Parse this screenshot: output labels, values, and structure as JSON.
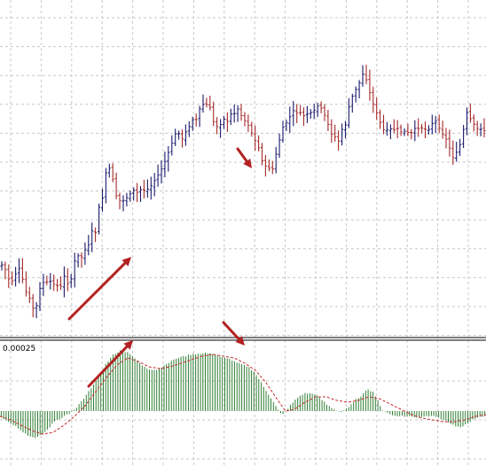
{
  "chart_data": [
    {
      "type": "bar",
      "subtype": "ohlc-price",
      "grid": true,
      "grid_style": "dashed",
      "ylim": [
        0,
        380
      ],
      "bar_count": 140,
      "close_path": [
        [
          0,
          300
        ],
        [
          4,
          298
        ],
        [
          8,
          312
        ],
        [
          12,
          318
        ],
        [
          16,
          314
        ],
        [
          20,
          300
        ],
        [
          24,
          312
        ],
        [
          28,
          326
        ],
        [
          31,
          334
        ],
        [
          34,
          340
        ],
        [
          38,
          350
        ],
        [
          41,
          346
        ],
        [
          44,
          330
        ],
        [
          48,
          318
        ],
        [
          52,
          320
        ],
        [
          56,
          320
        ],
        [
          60,
          318
        ],
        [
          64,
          322
        ],
        [
          68,
          326
        ],
        [
          72,
          312
        ],
        [
          76,
          318
        ],
        [
          80,
          316
        ],
        [
          84,
          296
        ],
        [
          88,
          290
        ],
        [
          92,
          290
        ],
        [
          96,
          282
        ],
        [
          100,
          278
        ],
        [
          104,
          262
        ],
        [
          108,
          262
        ],
        [
          112,
          232
        ],
        [
          116,
          222
        ],
        [
          118,
          198
        ],
        [
          121,
          192
        ],
        [
          124,
          192
        ],
        [
          127,
          200
        ],
        [
          130,
          218
        ],
        [
          134,
          226
        ],
        [
          138,
          228
        ],
        [
          142,
          222
        ],
        [
          146,
          222
        ],
        [
          150,
          216
        ],
        [
          154,
          218
        ],
        [
          158,
          214
        ],
        [
          162,
          214
        ],
        [
          166,
          214
        ],
        [
          170,
          210
        ],
        [
          174,
          204
        ],
        [
          178,
          198
        ],
        [
          182,
          190
        ],
        [
          186,
          182
        ],
        [
          190,
          174
        ],
        [
          194,
          160
        ],
        [
          198,
          152
        ],
        [
          202,
          148
        ],
        [
          206,
          160
        ],
        [
          210,
          148
        ],
        [
          214,
          140
        ],
        [
          218,
          132
        ],
        [
          222,
          136
        ],
        [
          225,
          124
        ],
        [
          228,
          118
        ],
        [
          232,
          118
        ],
        [
          236,
          120
        ],
        [
          240,
          136
        ],
        [
          244,
          142
        ],
        [
          248,
          140
        ],
        [
          252,
          132
        ],
        [
          256,
          140
        ],
        [
          260,
          130
        ],
        [
          264,
          126
        ],
        [
          268,
          124
        ],
        [
          272,
          128
        ],
        [
          276,
          136
        ],
        [
          280,
          140
        ],
        [
          284,
          150
        ],
        [
          288,
          160
        ],
        [
          292,
          168
        ],
        [
          295,
          178
        ],
        [
          299,
          190
        ],
        [
          303,
          188
        ],
        [
          307,
          192
        ],
        [
          311,
          176
        ],
        [
          315,
          158
        ],
        [
          319,
          146
        ],
        [
          323,
          138
        ],
        [
          327,
          132
        ],
        [
          331,
          126
        ],
        [
          335,
          126
        ],
        [
          339,
          130
        ],
        [
          343,
          130
        ],
        [
          347,
          128
        ],
        [
          351,
          130
        ],
        [
          355,
          126
        ],
        [
          359,
          118
        ],
        [
          363,
          126
        ],
        [
          367,
          134
        ],
        [
          371,
          144
        ],
        [
          375,
          152
        ],
        [
          379,
          156
        ],
        [
          383,
          160
        ],
        [
          386,
          146
        ],
        [
          389,
          142
        ],
        [
          393,
          124
        ],
        [
          397,
          110
        ],
        [
          401,
          100
        ],
        [
          405,
          94
        ],
        [
          408,
          88
        ],
        [
          411,
          76
        ],
        [
          414,
          94
        ],
        [
          418,
          110
        ],
        [
          422,
          118
        ],
        [
          426,
          134
        ],
        [
          430,
          142
        ],
        [
          434,
          150
        ],
        [
          438,
          148
        ],
        [
          442,
          146
        ],
        [
          446,
          146
        ],
        [
          450,
          148
        ],
        [
          454,
          148
        ],
        [
          458,
          150
        ],
        [
          462,
          152
        ],
        [
          466,
          150
        ],
        [
          470,
          144
        ],
        [
          474,
          142
        ],
        [
          478,
          146
        ],
        [
          482,
          146
        ],
        [
          486,
          140
        ],
        [
          490,
          136
        ],
        [
          494,
          140
        ],
        [
          498,
          148
        ],
        [
          502,
          156
        ],
        [
          506,
          164
        ],
        [
          510,
          176
        ],
        [
          514,
          176
        ],
        [
          518,
          166
        ],
        [
          522,
          150
        ],
        [
          526,
          128
        ],
        [
          530,
          134
        ],
        [
          534,
          142
        ],
        [
          538,
          146
        ],
        [
          542,
          144
        ],
        [
          548,
          148
        ]
      ]
    },
    {
      "type": "bar",
      "subtype": "oscillator-histogram",
      "grid": true,
      "level_label": "0.00025",
      "zero_line": 464,
      "bar_count": 200,
      "histogram_path": [
        [
          0,
          470
        ],
        [
          8,
          476
        ],
        [
          16,
          480
        ],
        [
          24,
          486
        ],
        [
          32,
          492
        ],
        [
          40,
          494
        ],
        [
          48,
          490
        ],
        [
          56,
          482
        ],
        [
          64,
          474
        ],
        [
          72,
          470
        ],
        [
          80,
          466
        ],
        [
          88,
          458
        ],
        [
          96,
          448
        ],
        [
          104,
          436
        ],
        [
          112,
          424
        ],
        [
          120,
          410
        ],
        [
          128,
          400
        ],
        [
          136,
          396
        ],
        [
          144,
          398
        ],
        [
          152,
          404
        ],
        [
          160,
          412
        ],
        [
          168,
          418
        ],
        [
          176,
          418
        ],
        [
          184,
          414
        ],
        [
          192,
          408
        ],
        [
          200,
          404
        ],
        [
          208,
          402
        ],
        [
          216,
          400
        ],
        [
          224,
          400
        ],
        [
          232,
          398
        ],
        [
          240,
          400
        ],
        [
          248,
          402
        ],
        [
          256,
          404
        ],
        [
          264,
          408
        ],
        [
          272,
          410
        ],
        [
          280,
          414
        ],
        [
          288,
          422
        ],
        [
          296,
          434
        ],
        [
          304,
          448
        ],
        [
          312,
          460
        ],
        [
          318,
          468
        ],
        [
          324,
          462
        ],
        [
          330,
          454
        ],
        [
          336,
          448
        ],
        [
          344,
          444
        ],
        [
          352,
          444
        ],
        [
          360,
          448
        ],
        [
          368,
          456
        ],
        [
          376,
          462
        ],
        [
          384,
          466
        ],
        [
          392,
          460
        ],
        [
          400,
          452
        ],
        [
          408,
          446
        ],
        [
          414,
          440
        ],
        [
          420,
          442
        ],
        [
          426,
          452
        ],
        [
          432,
          464
        ],
        [
          440,
          468
        ],
        [
          448,
          470
        ],
        [
          456,
          470
        ],
        [
          464,
          470
        ],
        [
          472,
          472
        ],
        [
          480,
          470
        ],
        [
          488,
          470
        ],
        [
          496,
          472
        ],
        [
          504,
          476
        ],
        [
          512,
          480
        ],
        [
          518,
          482
        ],
        [
          524,
          480
        ],
        [
          530,
          476
        ],
        [
          536,
          472
        ],
        [
          542,
          470
        ],
        [
          548,
          470
        ]
      ],
      "signal_path": [
        [
          0,
          470
        ],
        [
          12,
          474
        ],
        [
          24,
          480
        ],
        [
          36,
          486
        ],
        [
          48,
          490
        ],
        [
          60,
          488
        ],
        [
          72,
          480
        ],
        [
          84,
          470
        ],
        [
          96,
          458
        ],
        [
          108,
          442
        ],
        [
          120,
          426
        ],
        [
          132,
          412
        ],
        [
          144,
          404
        ],
        [
          156,
          408
        ],
        [
          168,
          414
        ],
        [
          180,
          416
        ],
        [
          192,
          414
        ],
        [
          204,
          410
        ],
        [
          216,
          406
        ],
        [
          228,
          402
        ],
        [
          240,
          400
        ],
        [
          252,
          402
        ],
        [
          264,
          404
        ],
        [
          276,
          410
        ],
        [
          288,
          418
        ],
        [
          300,
          432
        ],
        [
          312,
          450
        ],
        [
          322,
          464
        ],
        [
          332,
          462
        ],
        [
          344,
          454
        ],
        [
          356,
          448
        ],
        [
          368,
          448
        ],
        [
          380,
          452
        ],
        [
          392,
          454
        ],
        [
          404,
          452
        ],
        [
          416,
          448
        ],
        [
          428,
          450
        ],
        [
          440,
          456
        ],
        [
          452,
          462
        ],
        [
          464,
          468
        ],
        [
          476,
          472
        ],
        [
          488,
          474
        ],
        [
          500,
          476
        ],
        [
          512,
          476
        ],
        [
          524,
          474
        ],
        [
          536,
          470
        ],
        [
          548,
          468
        ]
      ]
    }
  ],
  "annotations": {
    "arrows": [
      {
        "from": [
          78,
          360
        ],
        "to": [
          148,
          290
        ],
        "color": "#b22222"
      },
      {
        "from": [
          268,
          168
        ],
        "to": [
          284,
          190
        ],
        "color": "#b22222"
      },
      {
        "from": [
          100,
          436
        ],
        "to": [
          150,
          384
        ],
        "color": "#b22222"
      },
      {
        "from": [
          252,
          364
        ],
        "to": [
          276,
          390
        ],
        "color": "#b22222"
      }
    ]
  },
  "colors": {
    "up_bar": "#1a1a6e",
    "down_bar": "#a52a2a",
    "histogram": "#2e7d32",
    "signal_line": "#c62828",
    "grid": "#c8c8c8",
    "separator": "#555555",
    "background": "#ffffff"
  }
}
